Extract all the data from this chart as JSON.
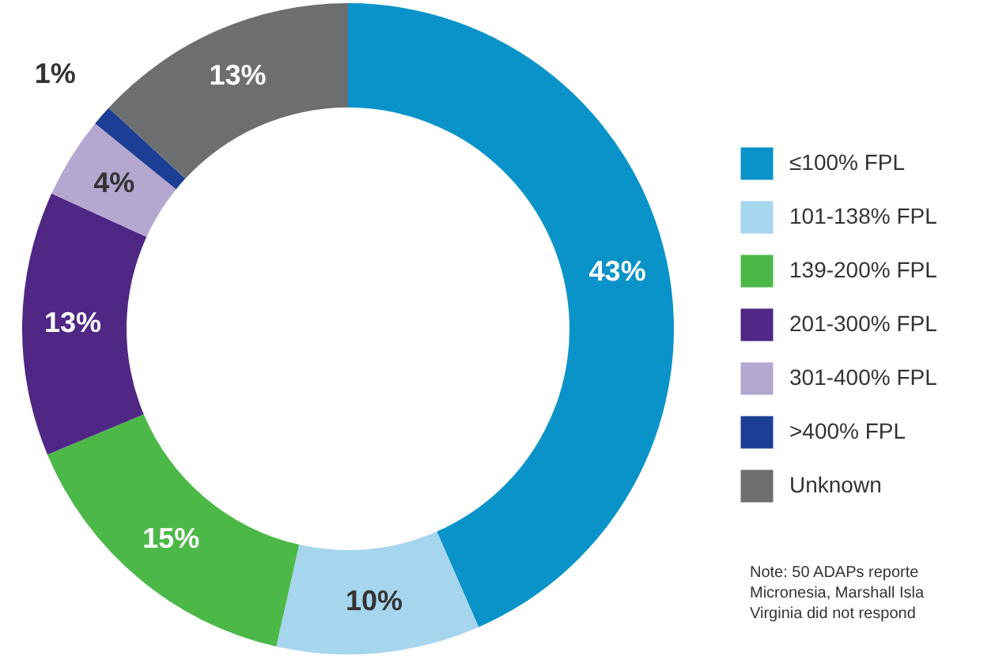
{
  "chart_data": {
    "type": "donut",
    "categories": [
      "≤100% FPL",
      "101-138% FPL",
      "139-200% FPL",
      "201-300% FPL",
      "301-400% FPL",
      ">400% FPL",
      "Unknown"
    ],
    "values": [
      43,
      10,
      15,
      13,
      4,
      1,
      13
    ],
    "colors": [
      "#0a93c9",
      "#a6d5ee",
      "#4cb848",
      "#4f2785",
      "#b4a7d0",
      "#1c3e94",
      "#6d6e70"
    ],
    "value_labels": [
      "43%",
      "10%",
      "15%",
      "13%",
      "4%",
      "1%",
      "13%"
    ],
    "legend": "right",
    "annotations": [
      "Note: 50 ADAPs reporte",
      "Micronesia, Marshall Isla",
      "Virginia did not respond"
    ]
  }
}
